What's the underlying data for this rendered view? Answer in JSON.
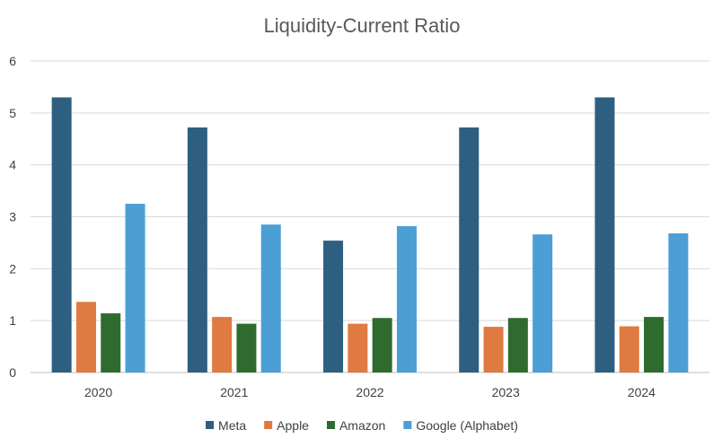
{
  "chart_data": {
    "type": "bar",
    "title": "Liquidity-Current Ratio",
    "xlabel": "",
    "ylabel": "",
    "categories": [
      "2020",
      "2021",
      "2022",
      "2023",
      "2024"
    ],
    "ylim": [
      0,
      6
    ],
    "yticks": [
      "0",
      "1",
      "2",
      "3",
      "4",
      "5",
      "6"
    ],
    "grid": true,
    "legend_position": "bottom",
    "series": [
      {
        "name": "Meta",
        "color": "#2E5F80",
        "values": [
          5.3,
          4.72,
          2.54,
          4.72,
          5.3
        ]
      },
      {
        "name": "Apple",
        "color": "#DF7A40",
        "values": [
          1.36,
          1.07,
          0.94,
          0.88,
          0.89
        ]
      },
      {
        "name": "Amazon",
        "color": "#2F6B2F",
        "values": [
          1.14,
          0.94,
          1.05,
          1.05,
          1.07
        ]
      },
      {
        "name": "Google (Alphabet)",
        "color": "#4B9FD5",
        "values": [
          3.25,
          2.85,
          2.82,
          2.66,
          2.68
        ]
      }
    ]
  }
}
